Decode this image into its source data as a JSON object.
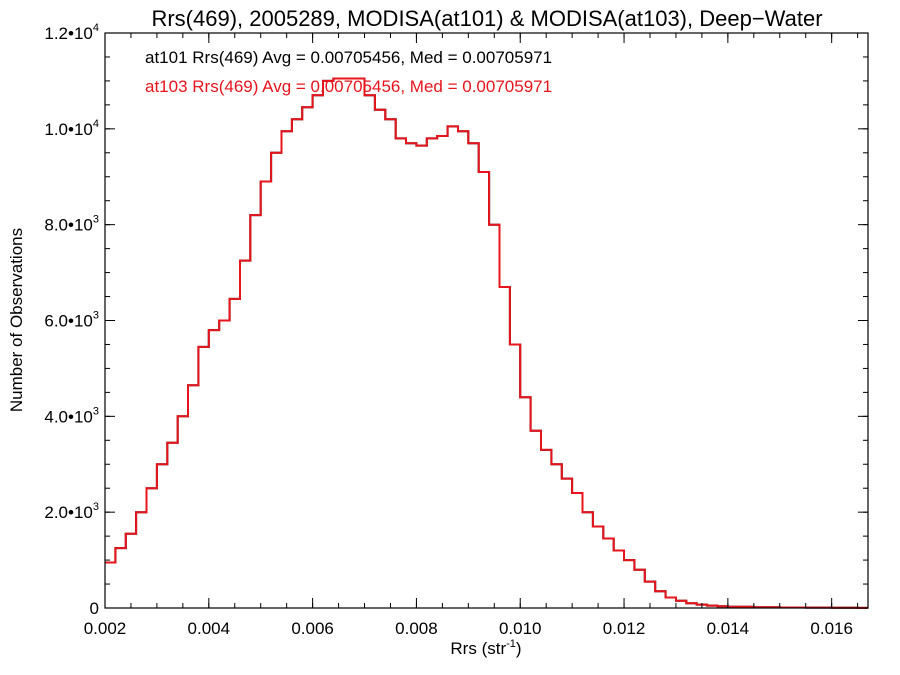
{
  "colors": {
    "background": "#ffffff",
    "axis": "#000000",
    "series1": "#000000",
    "series2": "#e8141c"
  },
  "chart_data": {
    "type": "line",
    "title": "Rrs(469), 2005289, MODISA(at101) & MODISA(at103), Deep−Water",
    "xlabel": "Rrs (str",
    "xlabel_sup": "-1",
    "xlabel_end": ")",
    "ylabel": "Number of Observations",
    "xlim": [
      0.002,
      0.0167
    ],
    "ylim": [
      0,
      12000
    ],
    "grid": false,
    "legend_placement": "top-left",
    "x_ticks": [
      {
        "value": 0.002,
        "label": "0.002"
      },
      {
        "value": 0.004,
        "label": "0.004"
      },
      {
        "value": 0.006,
        "label": "0.006"
      },
      {
        "value": 0.008,
        "label": "0.008"
      },
      {
        "value": 0.01,
        "label": "0.010"
      },
      {
        "value": 0.012,
        "label": "0.012"
      },
      {
        "value": 0.014,
        "label": "0.014"
      },
      {
        "value": 0.016,
        "label": "0.016"
      }
    ],
    "y_ticks": [
      {
        "value": 0,
        "label": "0",
        "sup": ""
      },
      {
        "value": 2000,
        "label": "2.0•10",
        "sup": "3"
      },
      {
        "value": 4000,
        "label": "4.0•10",
        "sup": "3"
      },
      {
        "value": 6000,
        "label": "6.0•10",
        "sup": "3"
      },
      {
        "value": 8000,
        "label": "8.0•10",
        "sup": "3"
      },
      {
        "value": 10000,
        "label": "1.0•10",
        "sup": "4"
      },
      {
        "value": 12000,
        "label": "1.2•10",
        "sup": "4"
      }
    ],
    "annotations": [
      "at101 Rrs(469) Avg = 0.00705456, Med = 0.00705971",
      "at103 Rrs(469) Avg = 0.00705456, Med = 0.00705971"
    ],
    "series": [
      {
        "name": "at101",
        "color": "#000000",
        "x": [
          0.002,
          0.0022,
          0.0024,
          0.0026,
          0.0028,
          0.003,
          0.0032,
          0.0034,
          0.0036,
          0.0038,
          0.004,
          0.0042,
          0.0044,
          0.0046,
          0.0048,
          0.005,
          0.0052,
          0.0054,
          0.0056,
          0.0058,
          0.006,
          0.0062,
          0.0064,
          0.0066,
          0.0068,
          0.007,
          0.0072,
          0.0074,
          0.0076,
          0.0078,
          0.008,
          0.0082,
          0.0084,
          0.0086,
          0.0088,
          0.009,
          0.0092,
          0.0094,
          0.0096,
          0.0098,
          0.01,
          0.0102,
          0.0104,
          0.0106,
          0.0108,
          0.011,
          0.0112,
          0.0114,
          0.0116,
          0.0118,
          0.012,
          0.0122,
          0.0124,
          0.0126,
          0.0128,
          0.013,
          0.0132,
          0.0134,
          0.0136,
          0.0138,
          0.014,
          0.0145,
          0.015,
          0.0155,
          0.016,
          0.0165,
          0.0167
        ],
        "y": [
          950,
          1250,
          1550,
          2000,
          2500,
          3000,
          3450,
          4000,
          4650,
          5450,
          5800,
          6000,
          6450,
          7250,
          8200,
          8900,
          9500,
          9950,
          10200,
          10450,
          10700,
          11000,
          11050,
          11050,
          11050,
          10700,
          10400,
          10200,
          9800,
          9700,
          9650,
          9800,
          9850,
          10050,
          9950,
          9700,
          9100,
          8000,
          6700,
          5500,
          4400,
          3700,
          3300,
          3000,
          2700,
          2400,
          2000,
          1700,
          1450,
          1200,
          1000,
          800,
          550,
          350,
          220,
          150,
          100,
          70,
          50,
          35,
          25,
          15,
          10,
          8,
          5,
          3,
          2
        ]
      },
      {
        "name": "at103",
        "color": "#e8141c",
        "x": [
          0.002,
          0.0022,
          0.0024,
          0.0026,
          0.0028,
          0.003,
          0.0032,
          0.0034,
          0.0036,
          0.0038,
          0.004,
          0.0042,
          0.0044,
          0.0046,
          0.0048,
          0.005,
          0.0052,
          0.0054,
          0.0056,
          0.0058,
          0.006,
          0.0062,
          0.0064,
          0.0066,
          0.0068,
          0.007,
          0.0072,
          0.0074,
          0.0076,
          0.0078,
          0.008,
          0.0082,
          0.0084,
          0.0086,
          0.0088,
          0.009,
          0.0092,
          0.0094,
          0.0096,
          0.0098,
          0.01,
          0.0102,
          0.0104,
          0.0106,
          0.0108,
          0.011,
          0.0112,
          0.0114,
          0.0116,
          0.0118,
          0.012,
          0.0122,
          0.0124,
          0.0126,
          0.0128,
          0.013,
          0.0132,
          0.0134,
          0.0136,
          0.0138,
          0.014,
          0.0145,
          0.015,
          0.0155,
          0.016,
          0.0165,
          0.0167
        ],
        "y": [
          950,
          1250,
          1550,
          2000,
          2500,
          3000,
          3450,
          4000,
          4650,
          5450,
          5800,
          6000,
          6450,
          7250,
          8200,
          8900,
          9500,
          9950,
          10200,
          10450,
          10700,
          11000,
          11050,
          11050,
          11050,
          10700,
          10400,
          10200,
          9800,
          9700,
          9650,
          9800,
          9850,
          10050,
          9950,
          9700,
          9100,
          8000,
          6700,
          5500,
          4400,
          3700,
          3300,
          3000,
          2700,
          2400,
          2000,
          1700,
          1450,
          1200,
          1000,
          800,
          550,
          350,
          220,
          150,
          100,
          70,
          50,
          35,
          25,
          15,
          10,
          8,
          5,
          3,
          2
        ]
      }
    ]
  }
}
